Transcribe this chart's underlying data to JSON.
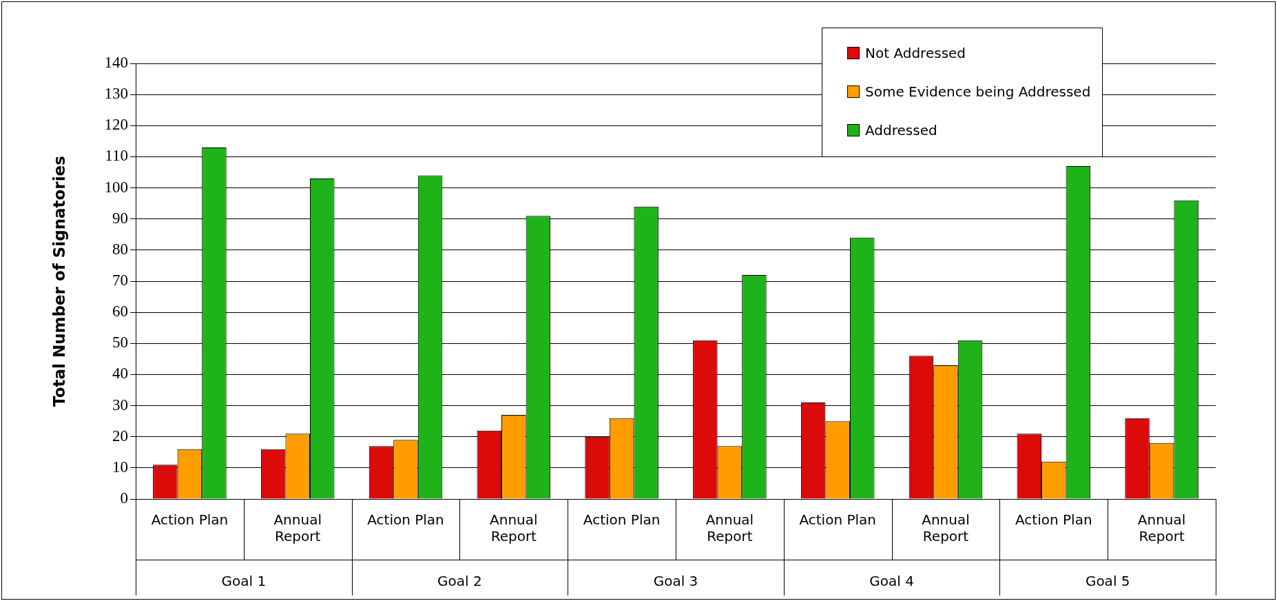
{
  "chart_data": {
    "type": "bar",
    "ylabel": "Total Number of Signatories",
    "categories": [
      "Action Plan",
      "Annual Report",
      "Action Plan",
      "Annual Report",
      "Action Plan",
      "Annual Report",
      "Action Plan",
      "Annual Report",
      "Action Plan",
      "Annual Report"
    ],
    "annotations": [
      "Goal 1",
      "Goal 2",
      "Goal 3",
      "Goal 4",
      "Goal 5"
    ],
    "series": [
      {
        "name": "Not Addressed",
        "color": "#dd0a0a",
        "values": [
          11,
          16,
          17,
          22,
          20,
          51,
          31,
          46,
          21,
          26
        ]
      },
      {
        "name": "Some Evidence being Addressed",
        "color": "#ff9d00",
        "values": [
          16,
          21,
          19,
          27,
          26,
          17,
          25,
          43,
          12,
          18
        ]
      },
      {
        "name": "Addressed",
        "color": "#1fb31a",
        "values": [
          113,
          103,
          104,
          91,
          94,
          72,
          84,
          51,
          107,
          96
        ]
      }
    ],
    "ylim": [
      0,
      140
    ],
    "yticks": [
      0,
      10,
      20,
      30,
      40,
      50,
      60,
      70,
      80,
      90,
      100,
      110,
      120,
      130,
      140
    ],
    "grid": "y",
    "legend": "top right"
  }
}
